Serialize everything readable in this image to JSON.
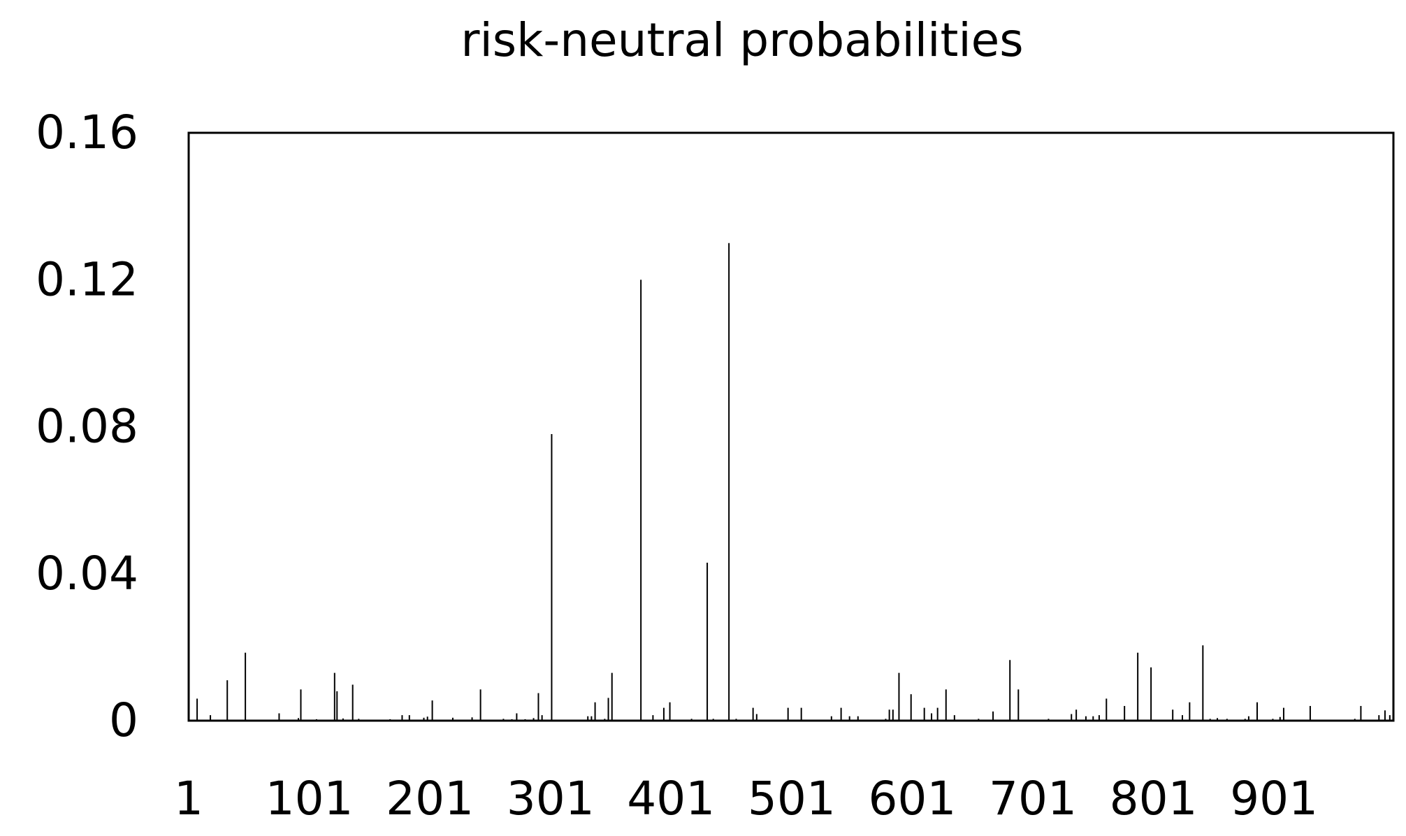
{
  "chart_data": {
    "type": "bar",
    "title": "risk-neutral probabilities",
    "xlabel": "",
    "ylabel": "",
    "x_range": [
      1,
      1000
    ],
    "ylim": [
      0,
      0.16
    ],
    "y_ticks": [
      "0",
      "0.04",
      "0.08",
      "0.12",
      "0.16"
    ],
    "y_tick_values": [
      0,
      0.04,
      0.08,
      0.12,
      0.16
    ],
    "x_ticks": [
      "1",
      "101",
      "201",
      "301",
      "401",
      "501",
      "601",
      "701",
      "801",
      "901"
    ],
    "x_tick_values": [
      1,
      101,
      201,
      301,
      401,
      501,
      601,
      701,
      801,
      901
    ],
    "grid": false,
    "legend": "none",
    "bar_color": "#000000",
    "points": [
      [
        8,
        0.006
      ],
      [
        19,
        0.0015
      ],
      [
        33,
        0.011
      ],
      [
        48,
        0.0185
      ],
      [
        76,
        0.002
      ],
      [
        92,
        0.0007
      ],
      [
        94,
        0.0085
      ],
      [
        107,
        0.0004
      ],
      [
        122,
        0.013
      ],
      [
        124,
        0.008
      ],
      [
        129,
        0.0006
      ],
      [
        137,
        0.0098
      ],
      [
        142,
        0.0005
      ],
      [
        168,
        0.0004
      ],
      [
        178,
        0.0015
      ],
      [
        184,
        0.0015
      ],
      [
        196,
        0.0008
      ],
      [
        199,
        0.0011
      ],
      [
        203,
        0.0055
      ],
      [
        220,
        0.0008
      ],
      [
        236,
        0.0009
      ],
      [
        243,
        0.0085
      ],
      [
        262,
        0.0005
      ],
      [
        269,
        0.0004
      ],
      [
        273,
        0.002
      ],
      [
        280,
        0.0004
      ],
      [
        287,
        0.0007
      ],
      [
        291,
        0.0075
      ],
      [
        294,
        0.0015
      ],
      [
        302,
        0.078
      ],
      [
        332,
        0.0012
      ],
      [
        335,
        0.0012
      ],
      [
        338,
        0.005
      ],
      [
        346,
        0.0005
      ],
      [
        349,
        0.0062
      ],
      [
        352,
        0.013
      ],
      [
        376,
        0.12
      ],
      [
        386,
        0.0015
      ],
      [
        395,
        0.0035
      ],
      [
        400,
        0.005
      ],
      [
        418,
        0.0005
      ],
      [
        431,
        0.043
      ],
      [
        436,
        0.0005
      ],
      [
        449,
        0.13
      ],
      [
        455,
        0.0005
      ],
      [
        469,
        0.0035
      ],
      [
        472,
        0.0018
      ],
      [
        498,
        0.0035
      ],
      [
        509,
        0.0035
      ],
      [
        534,
        0.0012
      ],
      [
        542,
        0.0035
      ],
      [
        549,
        0.0012
      ],
      [
        556,
        0.0012
      ],
      [
        579,
        0.0005
      ],
      [
        582,
        0.003
      ],
      [
        585,
        0.003
      ],
      [
        590,
        0.013
      ],
      [
        600,
        0.0072
      ],
      [
        611,
        0.0035
      ],
      [
        617,
        0.002
      ],
      [
        622,
        0.0035
      ],
      [
        629,
        0.0085
      ],
      [
        636,
        0.0015
      ],
      [
        656,
        0.0005
      ],
      [
        668,
        0.0025
      ],
      [
        682,
        0.0165
      ],
      [
        689,
        0.0085
      ],
      [
        714,
        0.0005
      ],
      [
        733,
        0.0018
      ],
      [
        737,
        0.003
      ],
      [
        745,
        0.0012
      ],
      [
        751,
        0.0012
      ],
      [
        756,
        0.0015
      ],
      [
        762,
        0.006
      ],
      [
        777,
        0.004
      ],
      [
        788,
        0.0185
      ],
      [
        799,
        0.0145
      ],
      [
        817,
        0.003
      ],
      [
        825,
        0.0015
      ],
      [
        831,
        0.005
      ],
      [
        842,
        0.0205
      ],
      [
        848,
        0.0005
      ],
      [
        854,
        0.0007
      ],
      [
        862,
        0.0005
      ],
      [
        877,
        0.0005
      ],
      [
        880,
        0.0012
      ],
      [
        887,
        0.005
      ],
      [
        900,
        0.0005
      ],
      [
        906,
        0.001
      ],
      [
        909,
        0.0035
      ],
      [
        931,
        0.004
      ],
      [
        968,
        0.0005
      ],
      [
        973,
        0.004
      ],
      [
        988,
        0.0015
      ],
      [
        993,
        0.0028
      ],
      [
        997,
        0.0015
      ]
    ]
  }
}
